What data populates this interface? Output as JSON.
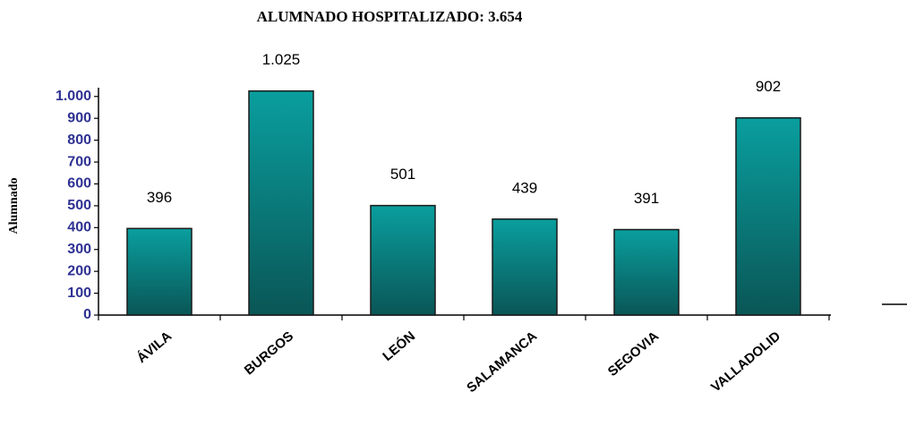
{
  "chart_data": {
    "type": "bar",
    "title": "ALUMNADO HOSPITALIZADO: 3.654",
    "y_label": "Alumnado",
    "categories": [
      "ÁVILA",
      "BURGOS",
      "LEÓN",
      "SALAMANCA",
      "SEGOVIA",
      "VALLADOLID"
    ],
    "values": [
      396,
      1025,
      501,
      439,
      391,
      902
    ],
    "value_labels": [
      "396",
      "1.025",
      "501",
      "439",
      "391",
      "902"
    ],
    "color": "#0e8f8f",
    "ylim": [
      0,
      1040
    ],
    "yticks": [
      0,
      100,
      200,
      300,
      400,
      500,
      600,
      700,
      800,
      900,
      {
        "value": 1000,
        "label": "1.000"
      }
    ]
  }
}
